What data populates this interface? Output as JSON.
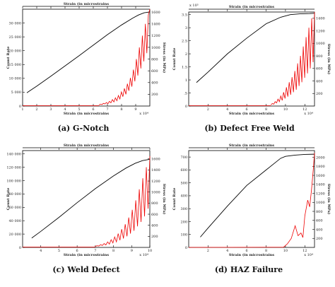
{
  "figure": {
    "captions": [
      "(a) G-Notch",
      "(b) Defect Free Weld",
      "(c) Weld Defect",
      "(d) HAZ Failure"
    ]
  },
  "colors": {
    "count_rate": "#000000",
    "stress": "#ee0000",
    "axis": "#000000"
  },
  "chart_data": [
    {
      "type": "line",
      "caption": "(a) G-Notch",
      "xlabel": "Strain (in microstrains",
      "top_xlabel": "Strain (in microstrains",
      "ylabel": "Count Rate",
      "y2label": "Stress (in MPa)",
      "x_multiplier": "x 10⁴",
      "xlim": [
        1,
        10
      ],
      "ylim": [
        0,
        35000
      ],
      "y2lim": [
        0,
        1650
      ],
      "x_ticks": [
        1,
        2,
        3,
        4,
        5,
        6,
        7,
        8,
        9
      ],
      "y_ticks": [
        0,
        5000,
        10000,
        15000,
        20000,
        25000,
        30000
      ],
      "y_tick_labels": [
        "0",
        "5 000",
        "10 000",
        "15 000",
        "20 000",
        "25 000",
        "30 000"
      ],
      "y2_ticks": [
        200,
        400,
        600,
        800,
        1000,
        1200,
        1400,
        1600
      ],
      "series": [
        {
          "axis": "left",
          "x": [
            1.3,
            2,
            3,
            4,
            5,
            6,
            7,
            8,
            8.8,
            9.2,
            9.6,
            10
          ],
          "y": [
            4800,
            7200,
            10800,
            14500,
            18200,
            22000,
            25800,
            29300,
            31800,
            32900,
            33700,
            34000
          ]
        },
        {
          "axis": "right",
          "spiky": true,
          "x_start": 6.4,
          "x_end": 10,
          "y": [
            20,
            30,
            25,
            45,
            35,
            60,
            40,
            80,
            55,
            110,
            70,
            140,
            90,
            180,
            120,
            240,
            160,
            300,
            200,
            380,
            260,
            480,
            330,
            620,
            420,
            800,
            520,
            1000,
            640,
            1200,
            760,
            1400,
            900,
            1550,
            1650
          ]
        }
      ]
    },
    {
      "type": "line",
      "caption": "(b) Defect Free Weld",
      "xlabel": "Strain (in microstrains",
      "top_xlabel": "Strain (in microstrains",
      "ylabel": "Count Rate",
      "y2label": "Stress (in MPa)",
      "x_multiplier": "x 10⁴",
      "y_multiplier": "x 10⁵",
      "xlim": [
        0,
        13
      ],
      "ylim": [
        0,
        3.6
      ],
      "y2lim": [
        0,
        1500
      ],
      "x_ticks": [
        2,
        4,
        6,
        8,
        10,
        12
      ],
      "y_ticks": [
        0,
        0.5,
        1,
        1.5,
        2,
        2.5,
        3,
        3.5
      ],
      "y_tick_labels": [
        "0",
        ".5",
        "1",
        "1.5",
        "2",
        "2.5",
        "3",
        "3.5"
      ],
      "y2_ticks": [
        200,
        400,
        600,
        800,
        1000,
        1200,
        1400
      ],
      "series": [
        {
          "axis": "left",
          "x": [
            0.8,
            2,
            4,
            6,
            8,
            9.5,
            10.5,
            11.5,
            12.5,
            13
          ],
          "y": [
            0.9,
            1.3,
            2.0,
            2.6,
            3.15,
            3.4,
            3.5,
            3.53,
            3.54,
            3.55
          ]
        },
        {
          "axis": "right",
          "spiky": true,
          "x_start": 8.5,
          "x_end": 13,
          "y": [
            20,
            40,
            30,
            70,
            50,
            110,
            70,
            160,
            90,
            220,
            120,
            300,
            150,
            380,
            180,
            460,
            220,
            560,
            260,
            680,
            320,
            800,
            380,
            950,
            450,
            1100,
            520,
            1250,
            600,
            1400,
            700,
            1500
          ]
        }
      ]
    },
    {
      "type": "line",
      "caption": "(c) Weld Defect",
      "xlabel": "Strain (in microstrains",
      "top_xlabel": "Strain (in microstrains",
      "ylabel": "Count Rate",
      "y2label": "Stress (in MPa)",
      "x_multiplier": "x 10⁴",
      "xlim": [
        3,
        10
      ],
      "ylim": [
        0,
        145000
      ],
      "y2lim": [
        0,
        1750
      ],
      "x_ticks": [
        4,
        5,
        6,
        7,
        8,
        9,
        10
      ],
      "y_ticks": [
        0,
        20000,
        40000,
        60000,
        80000,
        100000,
        120000,
        140000
      ],
      "y_tick_labels": [
        "0",
        "20 000",
        "40 000",
        "60 000",
        "80 000",
        "100 000",
        "120 000",
        "140 000"
      ],
      "y2_ticks": [
        200,
        400,
        600,
        800,
        1000,
        1200,
        1400,
        1600
      ],
      "series": [
        {
          "axis": "left",
          "x": [
            3.5,
            4,
            5,
            6,
            7,
            8,
            8.7,
            9.2,
            9.6,
            10
          ],
          "y": [
            14000,
            24000,
            45000,
            67000,
            88000,
            107000,
            119000,
            126000,
            130000,
            132000
          ]
        },
        {
          "axis": "right",
          "spiky": true,
          "x_start": 7.0,
          "x_end": 10,
          "y": [
            20,
            30,
            25,
            50,
            35,
            70,
            45,
            100,
            60,
            140,
            80,
            190,
            100,
            250,
            130,
            330,
            160,
            420,
            200,
            540,
            250,
            680,
            300,
            850,
            380,
            1050,
            460,
            1250,
            560,
            1450,
            700,
            1650
          ]
        }
      ]
    },
    {
      "type": "line",
      "caption": "(d) HAZ Failure",
      "xlabel": "Strain (in microstrains",
      "top_xlabel": "Strain (in microstrains",
      "ylabel": "Count Rate",
      "y2label": "Stress (in MPa)",
      "x_multiplier": "x 10⁴",
      "xlim": [
        0,
        13
      ],
      "ylim": [
        0,
        750
      ],
      "y2lim": [
        0,
        2150
      ],
      "x_ticks": [
        2,
        4,
        6,
        8,
        10,
        12
      ],
      "y_ticks": [
        0,
        100,
        200,
        300,
        400,
        500,
        600,
        700
      ],
      "y_tick_labels": [
        "0",
        "100",
        "200",
        "300",
        "400",
        "500",
        "600",
        "700"
      ],
      "y2_ticks": [
        200,
        400,
        600,
        800,
        1000,
        1200,
        1400,
        1600,
        1800,
        2000
      ],
      "series": [
        {
          "axis": "left",
          "x": [
            1.2,
            2,
            4,
            6,
            8,
            9,
            9.5,
            10,
            11,
            12,
            13
          ],
          "y": [
            80,
            150,
            320,
            480,
            600,
            660,
            690,
            705,
            715,
            720,
            722
          ]
        },
        {
          "axis": "right",
          "spiky": false,
          "x": [
            0,
            9.8,
            10.2,
            10.6,
            11.0,
            11.3,
            11.6,
            11.8,
            12.0,
            12.3,
            12.5,
            12.7,
            12.9,
            13.0
          ],
          "y": [
            0,
            5,
            80,
            200,
            480,
            260,
            320,
            220,
            700,
            1050,
            900,
            1300,
            1800,
            2100
          ]
        }
      ]
    }
  ]
}
